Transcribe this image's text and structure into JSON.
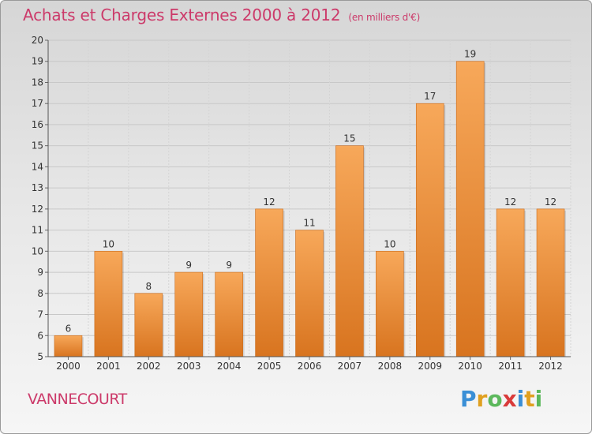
{
  "header": {
    "title": "Achats et Charges Externes 2000 à 2012",
    "subtitle": "(en milliers d'€)"
  },
  "footer": {
    "town": "VANNECOURT",
    "logo_letters": [
      "P",
      "r",
      "o",
      "x",
      "i",
      "t",
      "i"
    ]
  },
  "colors": {
    "bar_light": "#f7a85a",
    "bar_dark": "#d8741f",
    "title": "#cc3a6a",
    "logo": [
      "#3a8fd6",
      "#e0a020",
      "#5cb85c",
      "#d93b3b",
      "#3a8fd6",
      "#e0a020",
      "#5cb85c"
    ]
  },
  "chart_data": {
    "type": "bar",
    "title": "Achats et Charges Externes 2000 à 2012",
    "xlabel": "",
    "ylabel": "",
    "ylim": [
      5,
      20
    ],
    "yticks": [
      5,
      6,
      7,
      8,
      9,
      10,
      11,
      12,
      13,
      14,
      15,
      16,
      17,
      18,
      19,
      20
    ],
    "grid": true,
    "categories": [
      "2000",
      "2001",
      "2002",
      "2003",
      "2004",
      "2005",
      "2006",
      "2007",
      "2008",
      "2009",
      "2010",
      "2011",
      "2012"
    ],
    "values": [
      6,
      10,
      8,
      9,
      9,
      12,
      11,
      15,
      10,
      17,
      19,
      12,
      12
    ]
  }
}
